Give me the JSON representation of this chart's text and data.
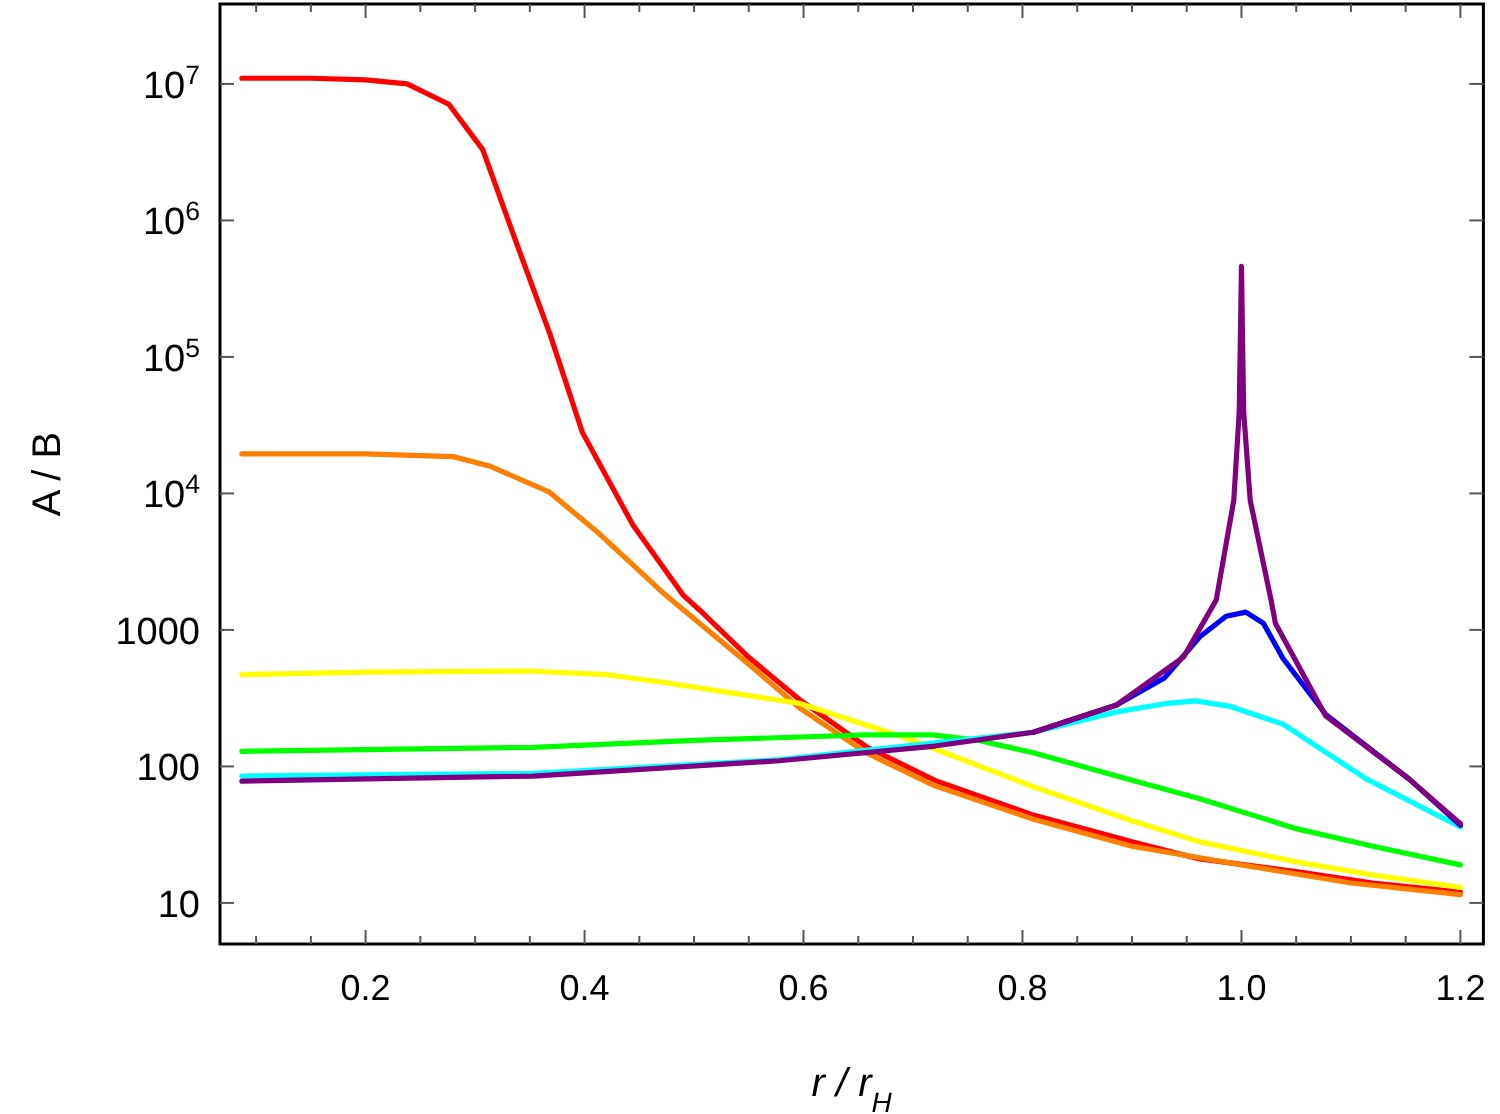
{
  "chart_data": {
    "type": "line",
    "xlabel": "r / r$_{H}$",
    "ylabel": "A / B",
    "log": "y",
    "grid": false,
    "line_style": "solid",
    "xlim": [
      0.067,
      1.221
    ],
    "ylim": [
      5,
      38500000
    ],
    "xticks": [
      {
        "value": 0.1,
        "label": null
      },
      {
        "value": 0.15,
        "label": null
      },
      0.2,
      {
        "value": 0.25,
        "label": null
      },
      {
        "value": 0.3,
        "label": null
      },
      {
        "value": 0.35,
        "label": null
      },
      0.4,
      {
        "value": 0.45,
        "label": null
      },
      {
        "value": 0.5,
        "label": null
      },
      {
        "value": 0.55,
        "label": null
      },
      0.6,
      {
        "value": 0.65,
        "label": null
      },
      {
        "value": 0.7,
        "label": null
      },
      {
        "value": 0.75,
        "label": null
      },
      0.8,
      {
        "value": 0.85,
        "label": null
      },
      {
        "value": 0.9,
        "label": null
      },
      {
        "value": 0.95,
        "label": null
      },
      {
        "value": 1,
        "label": "1.0"
      },
      {
        "value": 1.05,
        "label": null
      },
      {
        "value": 1.1,
        "label": null
      },
      {
        "value": 1.15,
        "label": null
      },
      1.2
    ],
    "yticks": [
      10,
      100,
      1000,
      {
        "value": 10000,
        "label": "10$^{4}$"
      },
      {
        "value": 100000,
        "label": "10$^{5}$"
      },
      {
        "value": 1000000,
        "label": "10$^{6}$"
      },
      {
        "value": 10000000,
        "label": "10$^{7}$"
      }
    ],
    "series": [
      {
        "color": "#ff0000",
        "x": [
          0.087,
          0.15,
          0.2,
          0.238,
          0.276,
          0.307,
          0.337,
          0.368,
          0.398,
          0.444,
          0.49,
          0.505,
          0.55,
          0.596,
          0.657,
          0.72,
          0.81,
          0.9,
          0.962,
          1.05,
          1.12,
          1.2
        ],
        "values": [
          11000000,
          11000000,
          10700000,
          10000000,
          7100000,
          3300000,
          710000,
          150000,
          28000,
          5900,
          1800,
          1400,
          630,
          310,
          140,
          79,
          44,
          28,
          21,
          17,
          14,
          12
        ]
      },
      {
        "color": "#ff8000",
        "x": [
          0.087,
          0.2,
          0.28,
          0.314,
          0.368,
          0.413,
          0.474,
          0.55,
          0.596,
          0.657,
          0.72,
          0.81,
          0.9,
          1.0,
          1.1,
          1.2
        ],
        "values": [
          19500,
          19500,
          18600,
          15800,
          10200,
          5100,
          1800,
          560,
          270,
          126,
          72,
          41,
          26,
          19,
          14,
          11.5
        ]
      },
      {
        "color": "#ffff00",
        "x": [
          0.087,
          0.2,
          0.35,
          0.42,
          0.474,
          0.53,
          0.596,
          0.695,
          0.81,
          0.9,
          0.962,
          1.05,
          1.12,
          1.2
        ],
        "values": [
          470,
          490,
          500,
          470,
          410,
          350,
          290,
          160,
          71,
          40,
          28,
          20,
          16,
          13
        ]
      },
      {
        "color": "#00ff00",
        "x": [
          0.087,
          0.353,
          0.5,
          0.657,
          0.718,
          0.76,
          0.81,
          0.886,
          0.962,
          1.05,
          1.12,
          1.2
        ],
        "values": [
          129,
          138,
          155,
          170,
          170,
          155,
          126,
          85,
          58,
          35,
          26,
          19
        ]
      },
      {
        "color": "#00ffff",
        "x": [
          0.087,
          0.353,
          0.578,
          0.72,
          0.81,
          0.886,
          0.93,
          0.958,
          0.99,
          1.038,
          1.114,
          1.2
        ],
        "values": [
          85,
          89,
          112,
          null,
          178,
          251,
          288,
          302,
          275,
          204,
          81,
          36
        ]
      },
      {
        "color": "#0000ff",
        "x": [
          0.81,
          0.886,
          0.93,
          0.962,
          0.986,
          1.004,
          1.02,
          1.038,
          1.077,
          1.153,
          1.2
        ],
        "values": [
          178,
          282,
          447,
          891,
          1260,
          1350,
          1120,
          617,
          240,
          81,
          37
        ]
      },
      {
        "color": "#800080",
        "x": [
          0.087,
          0.353,
          0.578,
          0.72,
          0.81,
          0.886,
          0.947,
          0.977,
          0.993,
          0.998,
          1.0,
          1.002,
          1.008,
          1.027,
          1.031,
          1.077,
          1.153,
          1.2
        ],
        "values": [
          78,
          85,
          110,
          141,
          178,
          282,
          631,
          1660,
          8900,
          40000,
          460000,
          40000,
          8900,
          1660,
          1120,
          234,
          81,
          38
        ]
      }
    ]
  }
}
